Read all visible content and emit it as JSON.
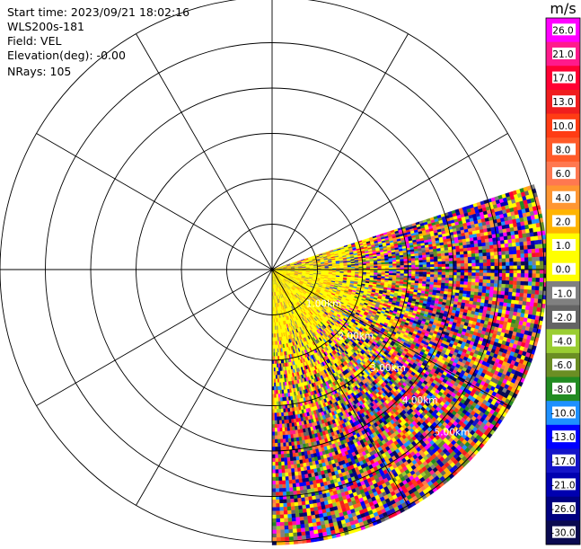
{
  "header": {
    "start_time": "Start time: 2023/09/21 18:02:16",
    "instrument": "WLS200s-181",
    "field": "Field: VEL",
    "elevation": "Elevation(deg): -0.00",
    "nrays": "NRays: 105"
  },
  "colorbar": {
    "unit": "m/s",
    "labels": [
      "26.0",
      "21.0",
      "17.0",
      "13.0",
      "10.0",
      "8.0",
      "6.0",
      "4.0",
      "2.0",
      "1.0",
      "0.0",
      "-1.0",
      "-2.0",
      "-4.0",
      "-6.0",
      "-8.0",
      "-10.0",
      "-13.0",
      "-17.0",
      "-21.0",
      "-26.0",
      "-30.0"
    ],
    "colors": [
      "#ff00ff",
      "#ff1a8c",
      "#ff0033",
      "#f01e1e",
      "#ff3c14",
      "#ff5a28",
      "#ff7850",
      "#ff9632",
      "#ffb400",
      "#ffff00",
      "#ffff00",
      "#808080",
      "#646464",
      "#9acd32",
      "#6b8e23",
      "#228b22",
      "#1e90ff",
      "#0000ff",
      "#1414c8",
      "#0000b0",
      "#000080",
      "#0a0a50"
    ]
  },
  "chart_data": {
    "type": "polar PPI",
    "field": "VEL",
    "units": "m/s",
    "rings_km": [
      1,
      2,
      3,
      4,
      5,
      6
    ],
    "ring_labels": [
      "1.00km",
      "2.00km",
      "3.00km",
      "4.00km",
      "5.00km"
    ],
    "ray_step_deg": 30,
    "sector_deg": [
      90,
      180
    ],
    "sector_max_range_km": 6,
    "near_range_dominant_value": 1.0,
    "far_range": "noisy, all values from -30 to 26 m/s"
  }
}
